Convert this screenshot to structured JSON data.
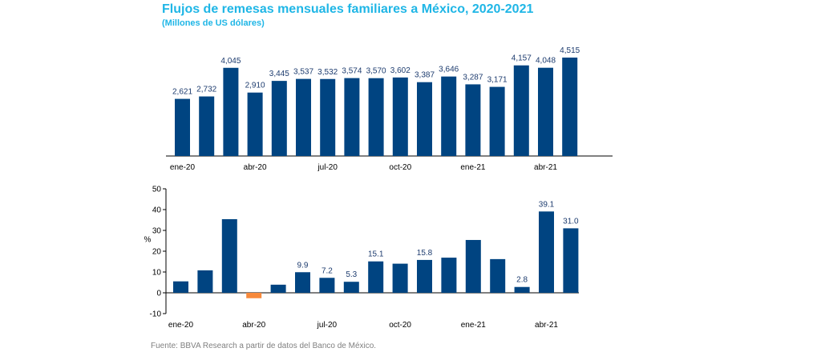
{
  "title": "Flujos de remesas mensuales familiares a México, 2020-2021",
  "subtitle": "(Millones de US dólares)",
  "source": "Fuente: BBVA Research a partir de datos del Banco de México.",
  "colors": {
    "bar": "#004481",
    "negative_bar": "#f7893b",
    "label": "#1c3b6e",
    "axis": "#000000",
    "title": "#1fb6e6"
  },
  "chart_data": [
    {
      "type": "bar",
      "title": "",
      "xlabel": "",
      "ylabel": "",
      "categories": [
        "ene-20",
        "feb-20",
        "mar-20",
        "abr-20",
        "may-20",
        "jun-20",
        "jul-20",
        "ago-20",
        "sep-20",
        "oct-20",
        "nov-20",
        "dic-20",
        "ene-21",
        "feb-21",
        "mar-21",
        "abr-21",
        "may-21"
      ],
      "values": [
        2621,
        2732,
        4045,
        2910,
        3445,
        3537,
        3532,
        3574,
        3570,
        3602,
        3387,
        3646,
        3287,
        3171,
        4157,
        4048,
        4515
      ],
      "data_labels": [
        "2,621",
        "2,732",
        "4,045",
        "2,910",
        "3,445",
        "3,537",
        "3,532",
        "3,574",
        "3,570",
        "3,602",
        "3,387",
        "3,646",
        "3,287",
        "3,171",
        "4,157",
        "4,048",
        "4,515"
      ],
      "tick_labels": [
        {
          "index": 0,
          "label": "ene-20"
        },
        {
          "index": 3,
          "label": "abr-20"
        },
        {
          "index": 6,
          "label": "jul-20"
        },
        {
          "index": 9,
          "label": "oct-20"
        },
        {
          "index": 12,
          "label": "ene-21"
        },
        {
          "index": 15,
          "label": "abr-21"
        }
      ],
      "grid": false
    },
    {
      "type": "bar",
      "title": "",
      "xlabel": "",
      "ylabel": "%",
      "ylim": [
        -10,
        50
      ],
      "yticks": [
        -10,
        0,
        10,
        20,
        30,
        40,
        50
      ],
      "categories": [
        "ene-20",
        "feb-20",
        "mar-20",
        "abr-20",
        "may-20",
        "jun-20",
        "jul-20",
        "ago-20",
        "sep-20",
        "oct-20",
        "nov-20",
        "dic-20",
        "ene-21",
        "feb-21",
        "mar-21",
        "abr-21",
        "may-21"
      ],
      "values": [
        5.5,
        10.8,
        35.4,
        -2.6,
        3.9,
        9.9,
        7.2,
        5.3,
        15.1,
        14.0,
        15.8,
        16.9,
        25.4,
        16.2,
        2.8,
        39.1,
        31.0
      ],
      "data_labels": [
        {
          "index": 5,
          "label": "9.9"
        },
        {
          "index": 6,
          "label": "7.2"
        },
        {
          "index": 7,
          "label": "5.3"
        },
        {
          "index": 8,
          "label": "15.1"
        },
        {
          "index": 10,
          "label": "15.8"
        },
        {
          "index": 14,
          "label": "2.8"
        },
        {
          "index": 15,
          "label": "39.1"
        },
        {
          "index": 16,
          "label": "31.0"
        }
      ],
      "tick_labels": [
        {
          "index": 0,
          "label": "ene-20"
        },
        {
          "index": 3,
          "label": "abr-20"
        },
        {
          "index": 6,
          "label": "jul-20"
        },
        {
          "index": 9,
          "label": "oct-20"
        },
        {
          "index": 12,
          "label": "ene-21"
        },
        {
          "index": 15,
          "label": "abr-21"
        }
      ],
      "grid": false
    }
  ]
}
